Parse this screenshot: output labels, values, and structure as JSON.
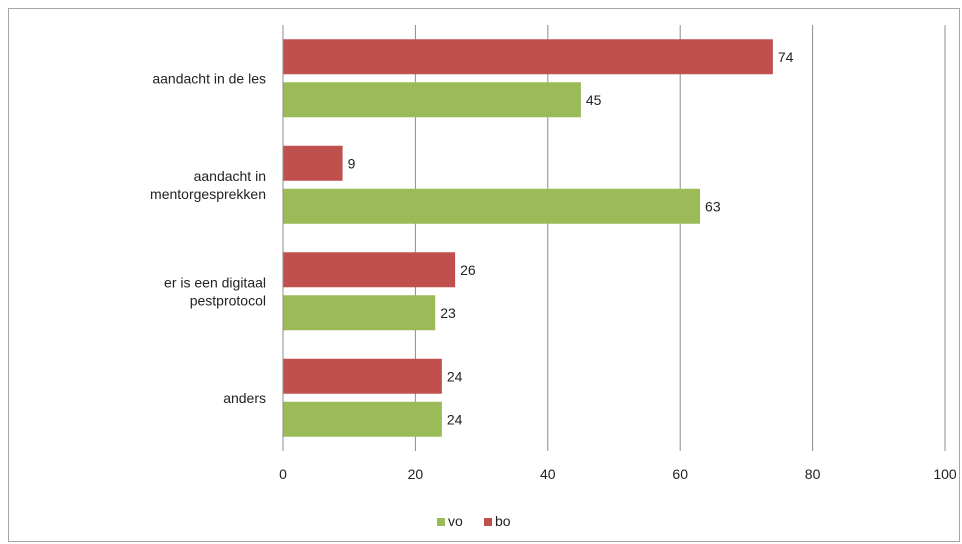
{
  "chart_data": {
    "type": "bar",
    "orientation": "horizontal",
    "categories": [
      [
        "aandacht in de les"
      ],
      [
        "aandacht in",
        "mentorgesprekken"
      ],
      [
        "er is een digitaal",
        "pestprotocol"
      ],
      [
        "anders"
      ]
    ],
    "series": [
      {
        "name": "bo",
        "color": "#c0504d",
        "values": [
          74,
          9,
          26,
          24
        ]
      },
      {
        "name": "vo",
        "color": "#9bbb59",
        "values": [
          45,
          63,
          23,
          24
        ]
      }
    ],
    "legend_order": [
      "vo",
      "bo"
    ],
    "xticks": [
      "0",
      "20",
      "40",
      "60",
      "80",
      "100"
    ],
    "xlim": [
      0,
      100
    ],
    "gridlines": "vertical",
    "legend_position": "bottom",
    "title": "",
    "xlabel": "",
    "ylabel": ""
  }
}
